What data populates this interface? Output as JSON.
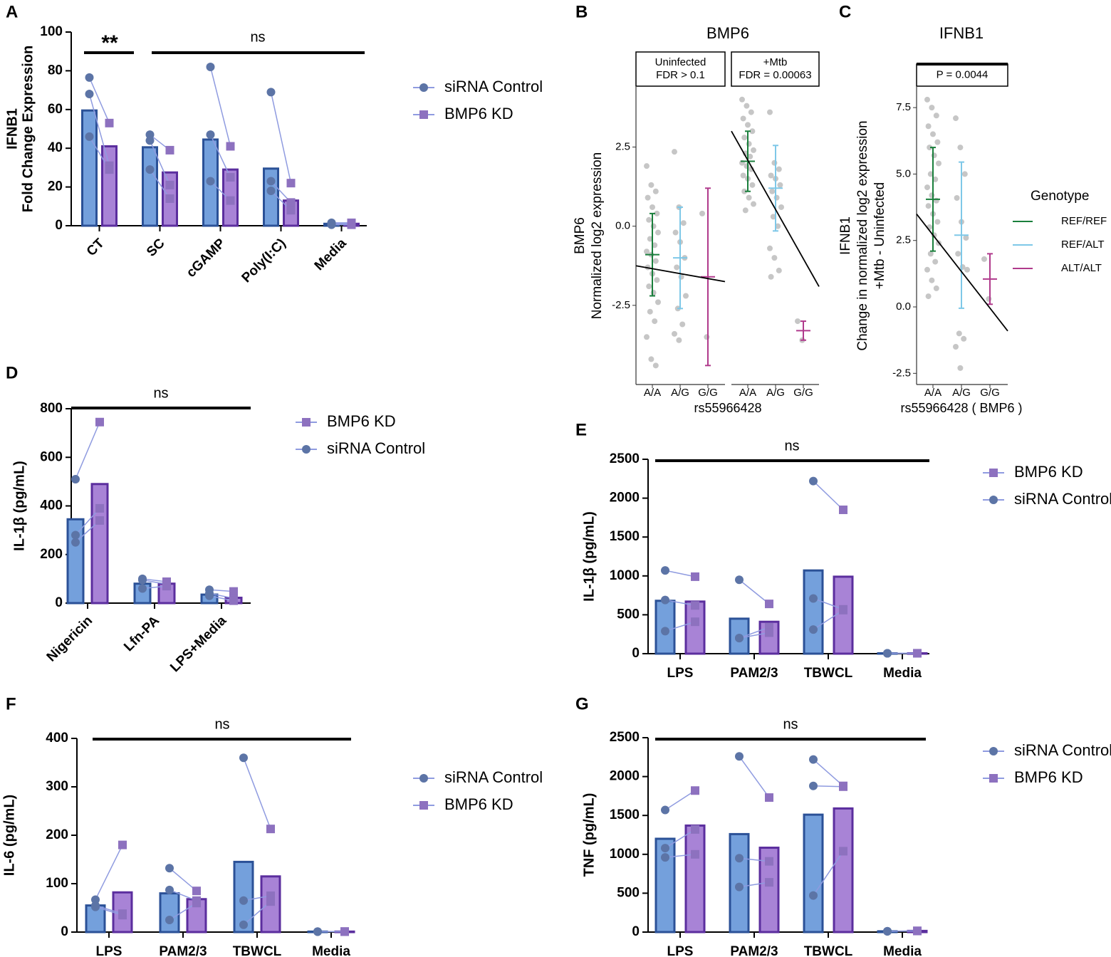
{
  "chart_data": [
    {
      "panel": "A",
      "type": "bar",
      "ylabel": [
        "IFNB1",
        "Fold Change Expression"
      ],
      "categories": [
        "CT",
        "SC",
        "cGAMP",
        "Poly(I:C)",
        "Media"
      ],
      "ylim": [
        0,
        100
      ],
      "yticks": [
        0,
        20,
        40,
        60,
        80,
        100
      ],
      "annotations": [
        "**",
        "ns"
      ],
      "series": [
        {
          "name": "siRNA Control",
          "color": "#74a0dc",
          "edgecolor": "#2b5197",
          "point_color": "#5c74a6",
          "marker": "circle",
          "values": [
            59.5,
            40.5,
            44.5,
            29.5,
            1
          ],
          "replicates": [
            [
              76.5,
              68,
              46
            ],
            [
              47,
              44,
              29
            ],
            [
              82,
              47,
              23
            ],
            [
              69,
              23,
              18
            ],
            [
              1.5,
              1,
              0.5
            ]
          ]
        },
        {
          "name": "BMP6 KD",
          "color": "#a883d6",
          "edgecolor": "#5b2e9e",
          "point_color": "#8d71bf",
          "marker": "square",
          "values": [
            41,
            27.5,
            29,
            13,
            1
          ],
          "replicates": [
            [
              53,
              31,
              29
            ],
            [
              39,
              21,
              14
            ],
            [
              41,
              25,
              13
            ],
            [
              22,
              12,
              8
            ],
            [
              1.5,
              1,
              0.5
            ]
          ]
        }
      ]
    },
    {
      "panel": "B",
      "type": "strip",
      "title": "BMP6",
      "ylabel": [
        "BMP6",
        "Normalized log2 expression"
      ],
      "xlabel": "rs55966428",
      "ylim": [
        -5.0,
        4.4
      ],
      "yticks": [
        -2.5,
        {
          "value": 0,
          "label": "0.0"
        },
        2.5
      ],
      "facets": [
        {
          "label": [
            "Uninfected",
            "FDR > 0.1"
          ],
          "categories": [
            "A/A",
            "A/G",
            "G/G"
          ],
          "fit": {
            "intercept": -1.186,
            "slope": -0.156
          },
          "groups": [
            {
              "color": "#1a7f3c",
              "mean": -0.9,
              "sd": 1.3,
              "points": [
                1.9,
                1.3,
                1.1,
                0.9,
                0.6,
                0.4,
                0.2,
                0.0,
                -0.2,
                -0.4,
                -0.6,
                -0.8,
                -0.9,
                -1.1,
                -1.3,
                -1.5,
                -1.7,
                -1.9,
                -2.1,
                -2.4,
                -2.7,
                -3.0,
                -3.5,
                -4.2,
                -4.4
              ]
            },
            {
              "color": "#7ec8e8",
              "mean": -1.0,
              "sd": 1.6,
              "points": [
                2.35,
                0.6,
                0.1,
                -0.2,
                -0.5,
                -1.0,
                -1.3,
                -1.6,
                -2.2,
                -2.6,
                -3.1,
                -3.4,
                -3.6
              ]
            },
            {
              "color": "#b03a8c",
              "mean": -1.6,
              "sd": 2.8,
              "points": [
                0.4,
                -3.5
              ]
            }
          ]
        },
        {
          "label": [
            "+Mtb",
            "FDR = 0.00063"
          ],
          "categories": [
            "A/A",
            "A/G",
            "G/G"
          ],
          "fit": {
            "intercept": 3.64,
            "slope": -1.556
          },
          "groups": [
            {
              "color": "#1a7f3c",
              "mean": 2.05,
              "sd": 0.95,
              "points": [
                4.0,
                3.8,
                3.6,
                3.4,
                3.2,
                3.0,
                2.8,
                2.6,
                2.4,
                2.3,
                2.2,
                2.0,
                1.9,
                1.8,
                1.6,
                1.5,
                1.3,
                1.1,
                0.9,
                0.7,
                0.5
              ]
            },
            {
              "color": "#7ec8e8",
              "mean": 1.2,
              "sd": 1.35,
              "points": [
                3.6,
                2.0,
                1.8,
                1.6,
                1.5,
                1.3,
                1.1,
                0.9,
                0.6,
                0.3,
                0.0,
                -0.7,
                -1.0,
                -1.4,
                -1.6
              ]
            },
            {
              "color": "#b03a8c",
              "mean": -3.3,
              "sd": 0.3,
              "points": [
                -3.0,
                -3.6
              ]
            }
          ]
        }
      ]
    },
    {
      "panel": "C",
      "type": "strip",
      "title": "IFNB1",
      "ylabel": [
        "IFNB1",
        "Change in normalized log2 expression",
        "+Mtb - Uninfected"
      ],
      "xlabel": "rs55966428 ( BMP6 )",
      "ylim": [
        -2.92,
        8.28
      ],
      "yticks": [
        -2.5,
        {
          "value": 0,
          "label": "0.0"
        },
        2.5,
        {
          "value": 5,
          "label": "5.0"
        },
        7.5
      ],
      "legend_title": "Genotype",
      "series": [
        {
          "name": "REF/REF",
          "color": "#1a7f3c"
        },
        {
          "name": "REF/ALT",
          "color": "#7ec8e8"
        },
        {
          "name": "ALT/ALT",
          "color": "#b03a8c"
        }
      ],
      "facets": [
        {
          "label": [
            "P = 0.0044"
          ],
          "categories": [
            "A/A",
            "A/G",
            "G/G"
          ],
          "fit": {
            "intercept": 4.08,
            "slope": -1.375
          },
          "groups": [
            {
              "color": "#1a7f3c",
              "mean": 4.05,
              "sd": 1.95,
              "points": [
                7.8,
                7.5,
                7.2,
                6.8,
                6.5,
                6.2,
                6.0,
                5.7,
                5.4,
                5.0,
                4.8,
                4.5,
                4.2,
                4.0,
                3.8,
                3.5,
                3.2,
                3.0,
                2.7,
                2.4,
                2.0,
                1.7,
                1.4,
                1.0,
                0.7,
                0.4
              ]
            },
            {
              "color": "#7ec8e8",
              "mean": 2.7,
              "sd": 2.75,
              "points": [
                7.1,
                6.0,
                5.0,
                4.1,
                3.2,
                2.6,
                2.0,
                1.5,
                1.4,
                -1.0,
                -1.2,
                -1.5,
                -2.3
              ]
            },
            {
              "color": "#b03a8c",
              "mean": 1.05,
              "sd": 0.95,
              "points": [
                1.8,
                0.3
              ]
            }
          ]
        }
      ]
    },
    {
      "panel": "D",
      "type": "bar",
      "ylabel": "IL-1β (pg/mL)",
      "categories": [
        "Nigericin",
        "Lfn-PA",
        "LPS+Media"
      ],
      "ylim": [
        0,
        800
      ],
      "yticks": [
        0,
        200,
        400,
        600,
        800
      ],
      "annotations": [
        "ns"
      ],
      "series": [
        {
          "name": "BMP6 KD",
          "color": "#a883d6",
          "edgecolor": "#5b2e9e",
          "point_color": "#8d71bf",
          "marker": "square",
          "values": [
            490,
            80,
            22
          ],
          "replicates": [
            [
              745,
              390,
              340
            ],
            [
              88,
              78,
              70
            ],
            [
              48,
              20,
              10
            ]
          ]
        },
        {
          "name": "siRNA Control",
          "color": "#74a0dc",
          "edgecolor": "#2b5197",
          "point_color": "#5c74a6",
          "marker": "circle",
          "values": [
            345,
            80,
            35
          ],
          "replicates": [
            [
              510,
              280,
              250
            ],
            [
              100,
              95,
              60
            ],
            [
              55,
              40,
              30
            ]
          ]
        }
      ]
    },
    {
      "panel": "E",
      "type": "bar",
      "ylabel": "IL-1β (pg/mL)",
      "categories": [
        "LPS",
        "PAM2/3",
        "TBWCL",
        "Media"
      ],
      "ylim": [
        0,
        2500
      ],
      "yticks": [
        0,
        500,
        1000,
        1500,
        2000,
        2500
      ],
      "annotations": [
        "ns"
      ],
      "series": [
        {
          "name": "BMP6 KD",
          "color": "#a883d6",
          "edgecolor": "#5b2e9e",
          "point_color": "#8d71bf",
          "marker": "square",
          "values": [
            670,
            410,
            990,
            5
          ],
          "replicates": [
            [
              990,
              620,
              410
            ],
            [
              640,
              340,
              270
            ],
            [
              1850,
              570,
              560
            ],
            [
              5,
              5,
              5
            ]
          ]
        },
        {
          "name": "siRNA Control",
          "color": "#74a0dc",
          "edgecolor": "#2b5197",
          "point_color": "#5c74a6",
          "marker": "circle",
          "values": [
            680,
            450,
            1070,
            5
          ],
          "replicates": [
            [
              1070,
              690,
              290
            ],
            [
              950,
              200,
              200
            ],
            [
              2220,
              710,
              310
            ],
            [
              5,
              5,
              5
            ]
          ]
        }
      ]
    },
    {
      "panel": "F",
      "type": "bar",
      "ylabel": "IL-6 (pg/mL)",
      "categories": [
        "LPS",
        "PAM2/3",
        "TBWCL",
        "Media"
      ],
      "ylim": [
        0,
        400
      ],
      "yticks": [
        0,
        100,
        200,
        300,
        400
      ],
      "annotations": [
        "ns"
      ],
      "series": [
        {
          "name": "siRNA Control",
          "color": "#74a0dc",
          "edgecolor": "#2b5197",
          "point_color": "#5c74a6",
          "marker": "circle",
          "values": [
            55,
            80,
            145,
            1
          ],
          "replicates": [
            [
              67,
              55,
              52
            ],
            [
              132,
              87,
              25
            ],
            [
              360,
              65,
              15
            ],
            [
              1,
              1,
              1
            ]
          ]
        },
        {
          "name": "BMP6 KD",
          "color": "#a883d6",
          "edgecolor": "#5b2e9e",
          "point_color": "#8d71bf",
          "marker": "square",
          "values": [
            82,
            68,
            115,
            1
          ],
          "replicates": [
            [
              180,
              38,
              35
            ],
            [
              85,
              65,
              60
            ],
            [
              213,
              75,
              63
            ],
            [
              1,
              1,
              1
            ]
          ]
        }
      ]
    },
    {
      "panel": "G",
      "type": "bar",
      "ylabel": "TNF (pg/mL)",
      "categories": [
        "LPS",
        "PAM2/3",
        "TBWCL",
        "Media"
      ],
      "ylim": [
        0,
        2500
      ],
      "yticks": [
        0,
        500,
        1000,
        1500,
        2000,
        2500
      ],
      "annotations": [
        "ns"
      ],
      "series": [
        {
          "name": "siRNA Control",
          "color": "#74a0dc",
          "edgecolor": "#2b5197",
          "point_color": "#5c74a6",
          "marker": "circle",
          "values": [
            1200,
            1260,
            1510,
            10
          ],
          "replicates": [
            [
              1570,
              1080,
              960
            ],
            [
              2260,
              950,
              580
            ],
            [
              2220,
              1880,
              470
            ],
            [
              10,
              10,
              10
            ]
          ]
        },
        {
          "name": "BMP6 KD",
          "color": "#a883d6",
          "edgecolor": "#5b2e9e",
          "point_color": "#8d71bf",
          "marker": "square",
          "values": [
            1370,
            1085,
            1590,
            15
          ],
          "replicates": [
            [
              1820,
              1320,
              1000
            ],
            [
              1730,
              910,
              640
            ],
            [
              1880,
              1870,
              1040
            ],
            [
              15,
              15,
              15
            ]
          ]
        }
      ]
    }
  ]
}
